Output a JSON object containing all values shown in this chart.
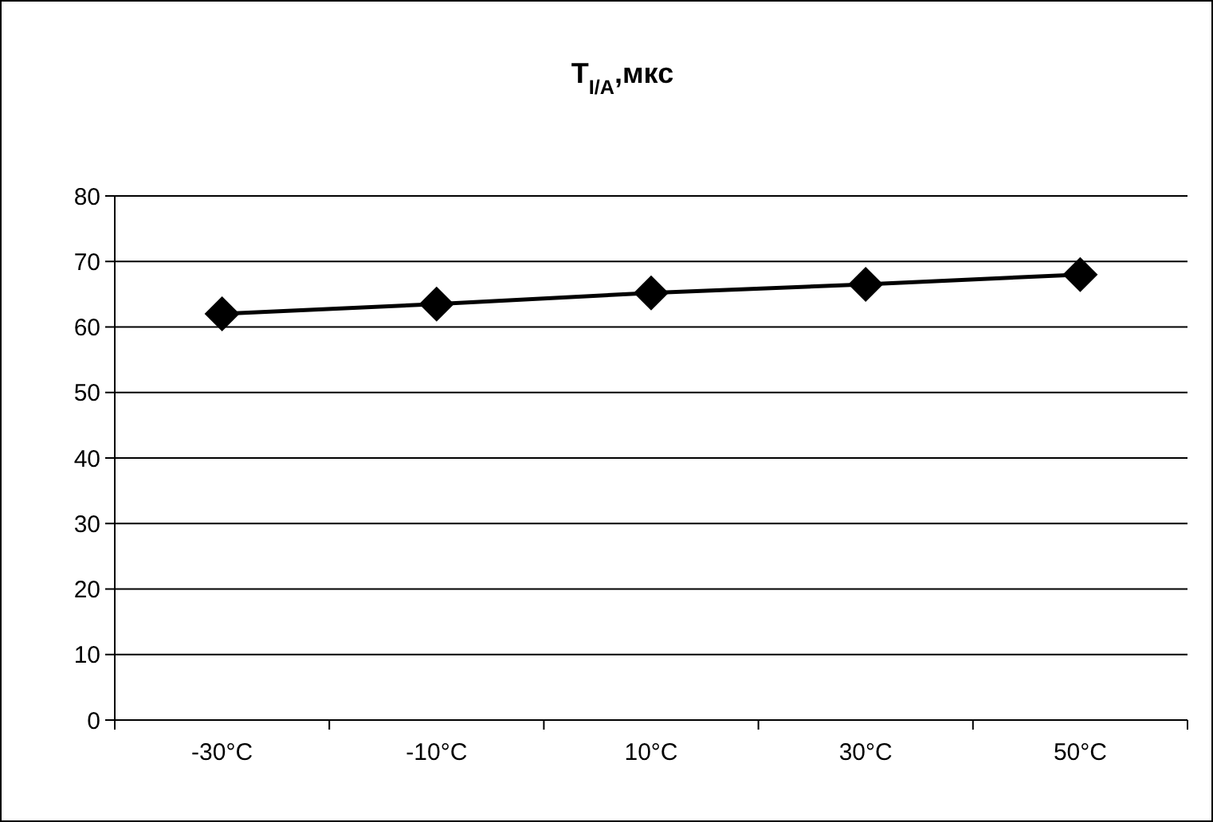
{
  "chart_data": {
    "type": "line",
    "title": "T$_{I/A}$,мкс",
    "categories": [
      "-30°C",
      "-10°C",
      "10°C",
      "30°C",
      "50°C"
    ],
    "series": [
      {
        "color": "#000000",
        "values": [
          62.0,
          63.5,
          65.2,
          66.5,
          68.0
        ]
      }
    ],
    "ylim": [
      0,
      80
    ],
    "yticks": [
      0,
      10,
      20,
      30,
      40,
      50,
      60,
      70,
      80
    ],
    "grid": "y",
    "marker": "diamond",
    "line_style": "solid"
  }
}
